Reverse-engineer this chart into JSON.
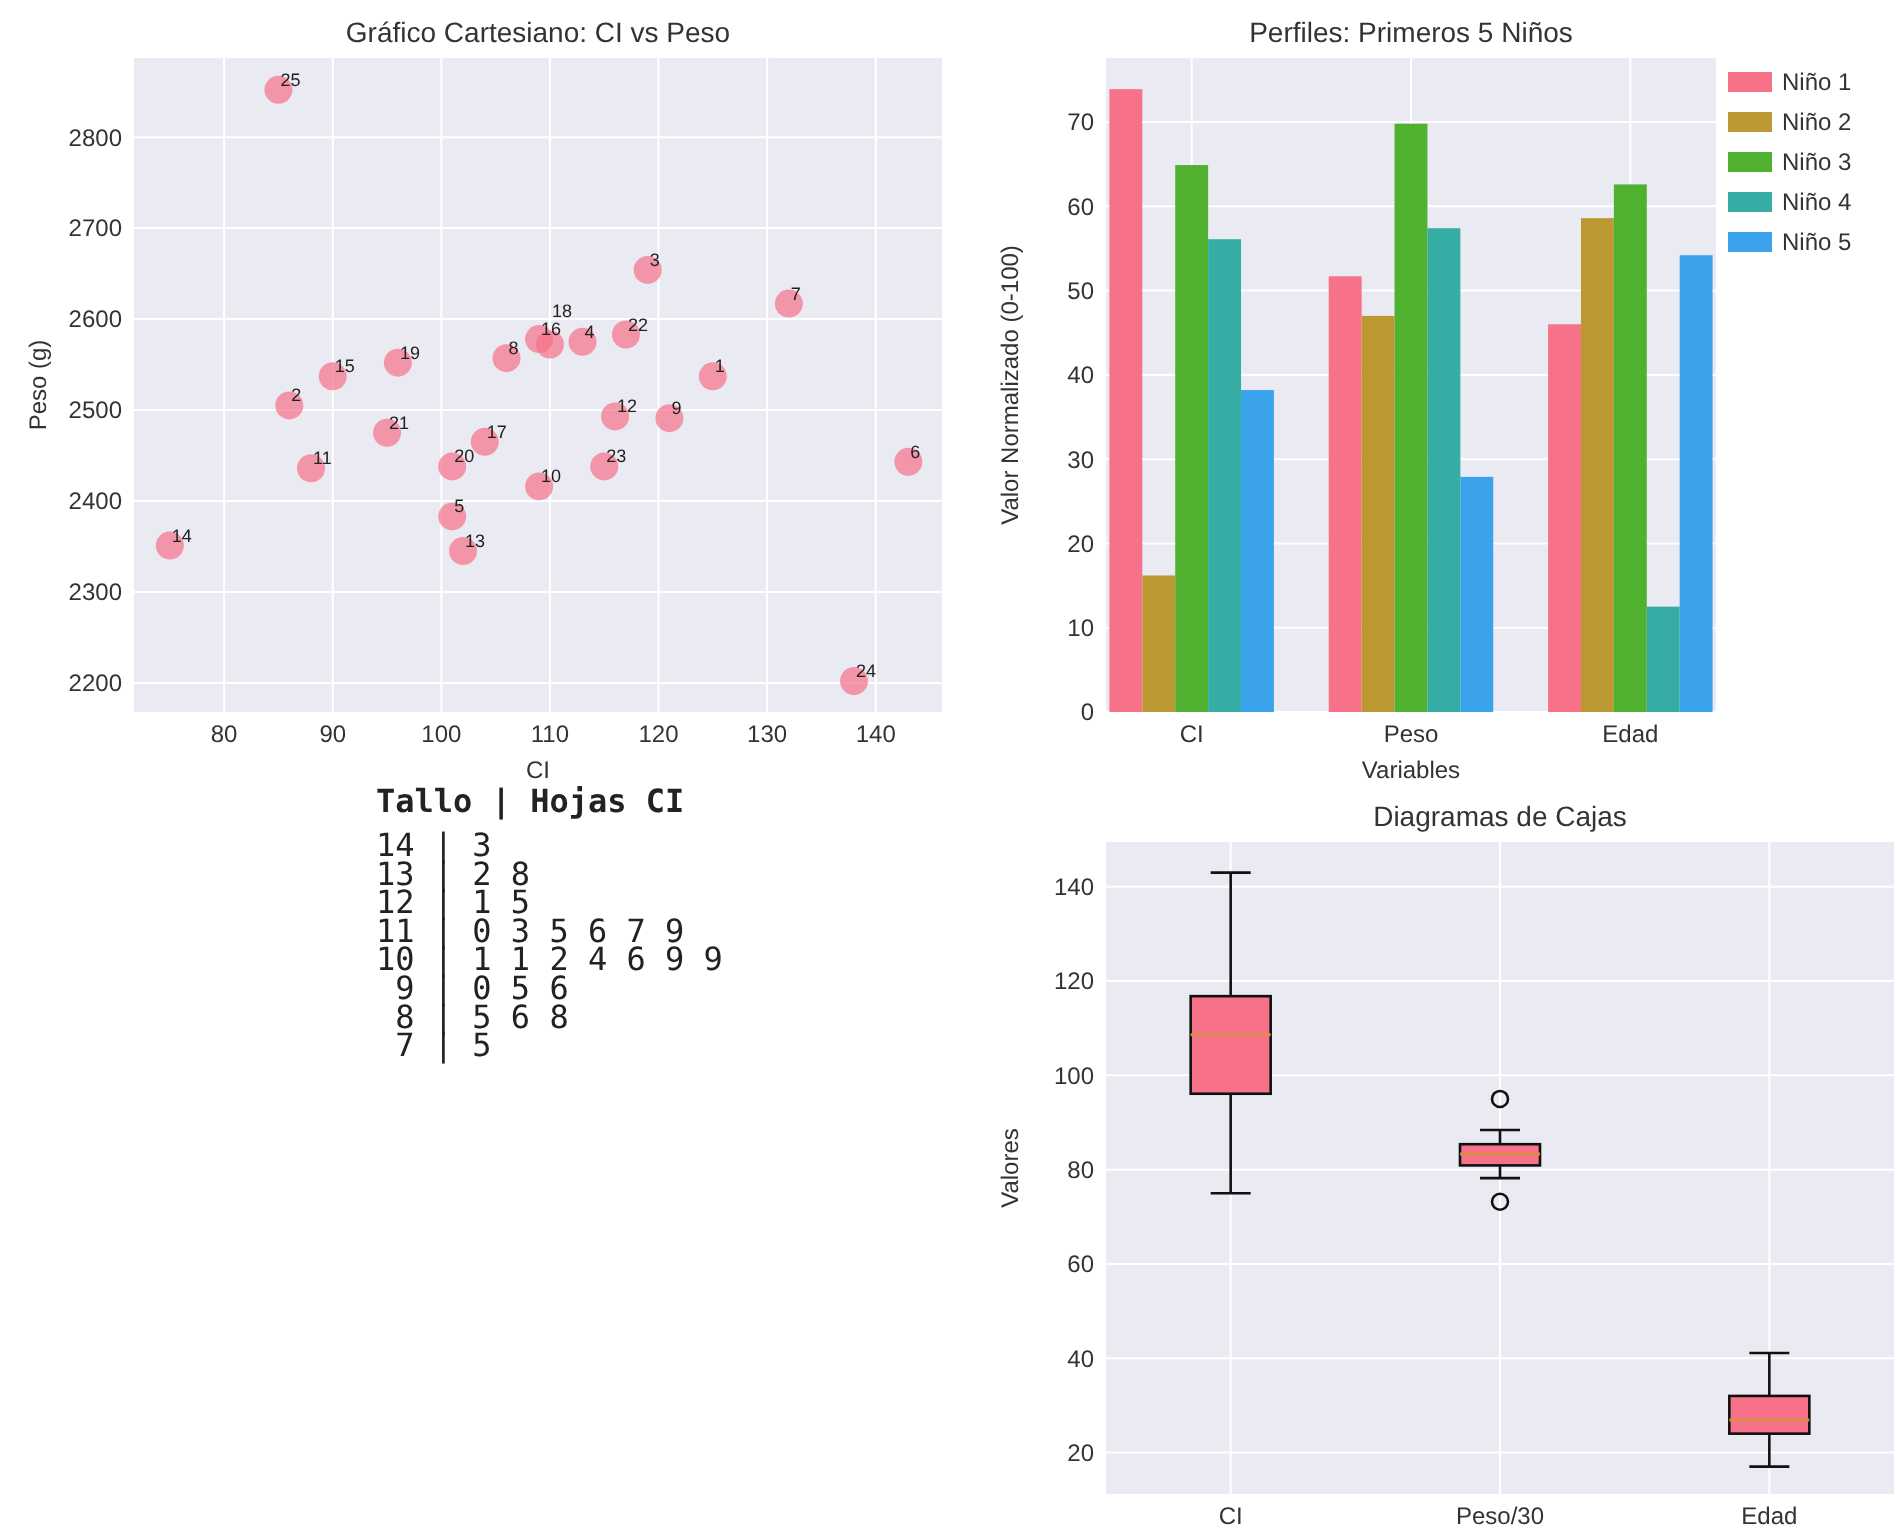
{
  "chart_data": [
    {
      "type": "scatter",
      "title": "Gráfico Cartesiano: CI vs Peso",
      "xlabel": "CI",
      "ylabel": "Peso (g)",
      "marker": "circle",
      "grid": true,
      "color": "#f77189",
      "x": [
        125,
        86,
        119,
        113,
        101,
        143,
        132,
        106,
        121,
        109,
        88,
        116,
        102,
        75,
        90,
        109,
        104,
        110,
        96,
        101,
        95,
        117,
        115,
        138,
        85
      ],
      "values": [
        2537,
        2505,
        2654,
        2575,
        2383,
        2443,
        2617,
        2557,
        2491,
        2416,
        2436,
        2493,
        2345,
        2351,
        2537,
        2578,
        2465,
        2572,
        2552,
        2438,
        2475,
        2583,
        2438,
        2202,
        2852
      ],
      "xlim": [
        71.7,
        146.1
      ],
      "xticks": [
        80,
        90,
        100,
        110,
        120,
        130,
        140
      ],
      "ylim": [
        2168,
        2887
      ],
      "yticks": [
        2200,
        2300,
        2400,
        2500,
        2600,
        2700,
        2800
      ],
      "annotations": [
        {
          "text": "1",
          "x": 125,
          "y": 2537
        },
        {
          "text": "2",
          "x": 86,
          "y": 2505
        },
        {
          "text": "3",
          "x": 119,
          "y": 2654
        },
        {
          "text": "4",
          "x": 113,
          "y": 2575
        },
        {
          "text": "5",
          "x": 101,
          "y": 2383
        },
        {
          "text": "6",
          "x": 143,
          "y": 2443
        },
        {
          "text": "7",
          "x": 132,
          "y": 2617
        },
        {
          "text": "8",
          "x": 106,
          "y": 2557
        },
        {
          "text": "9",
          "x": 121,
          "y": 2491
        },
        {
          "text": "10",
          "x": 109,
          "y": 2416
        },
        {
          "text": "11",
          "x": 88,
          "y": 2436
        },
        {
          "text": "12",
          "x": 116,
          "y": 2493
        },
        {
          "text": "13",
          "x": 102,
          "y": 2345
        },
        {
          "text": "14",
          "x": 75,
          "y": 2351
        },
        {
          "text": "15",
          "x": 90,
          "y": 2537
        },
        {
          "text": "16",
          "x": 109,
          "y": 2578
        },
        {
          "text": "17",
          "x": 104,
          "y": 2465
        },
        {
          "text": "18",
          "x": 110,
          "y": 2572
        },
        {
          "text": "19",
          "x": 96,
          "y": 2552
        },
        {
          "text": "20",
          "x": 101,
          "y": 2438
        },
        {
          "text": "21",
          "x": 95,
          "y": 2475
        },
        {
          "text": "22",
          "x": 117,
          "y": 2583
        },
        {
          "text": "23",
          "x": 115,
          "y": 2438
        },
        {
          "text": "24",
          "x": 138,
          "y": 2202
        },
        {
          "text": "25",
          "x": 85,
          "y": 2852
        }
      ]
    },
    {
      "type": "bar",
      "title": "Perfiles: Primeros 5 Niños",
      "xlabel": "Variables",
      "ylabel": "Valor Normalizado (0-100)",
      "categories": [
        "CI",
        "Peso",
        "Edad"
      ],
      "grid": true,
      "legend": "right",
      "ylim": [
        0,
        77.6
      ],
      "yticks": [
        0,
        10,
        20,
        30,
        40,
        50,
        60,
        70
      ],
      "series": [
        {
          "name": "Niño 1",
          "color": "#f77189",
          "values": [
            73.9,
            51.7,
            46.0
          ]
        },
        {
          "name": "Niño 2",
          "color": "#bb9832",
          "values": [
            16.2,
            47.0,
            58.6
          ]
        },
        {
          "name": "Niño 3",
          "color": "#50b131",
          "values": [
            64.9,
            69.8,
            62.6
          ]
        },
        {
          "name": "Niño 4",
          "color": "#36ada4",
          "values": [
            56.1,
            57.4,
            12.5
          ]
        },
        {
          "name": "Niño 5",
          "color": "#3ba3ec",
          "values": [
            38.2,
            27.9,
            54.2
          ]
        }
      ]
    },
    {
      "type": "other",
      "title": "Tallo | Hojas CI",
      "annotations": [
        "14 | 3",
        "13 | 2 8",
        "12 | 1 5",
        "11 | 0 3 5 6 7 9",
        "10 | 1 1 2 4 6 9 9",
        " 9 | 0 5 6",
        " 8 | 5 6 8",
        " 7 | 5"
      ]
    },
    {
      "type": "box",
      "title": "Diagramas de Cajas",
      "ylabel": "Valores",
      "categories": [
        "CI",
        "Peso/30",
        "Edad"
      ],
      "grid": true,
      "color": "#f77189",
      "ylim": [
        11.2,
        149.5
      ],
      "yticks": [
        20,
        40,
        60,
        80,
        100,
        120,
        140
      ],
      "boxes": [
        {
          "low": 75,
          "q1": 96.1,
          "median": 108.6,
          "q3": 116.8,
          "high": 143
        },
        {
          "low": 78.2,
          "q1": 80.9,
          "median": 83.3,
          "q3": 85.4,
          "high": 88.4,
          "outliers": [
            95.0,
            73.2
          ]
        },
        {
          "low": 17.0,
          "q1": 24.0,
          "median": 26.9,
          "q3": 32.0,
          "high": 41.1
        }
      ]
    }
  ]
}
